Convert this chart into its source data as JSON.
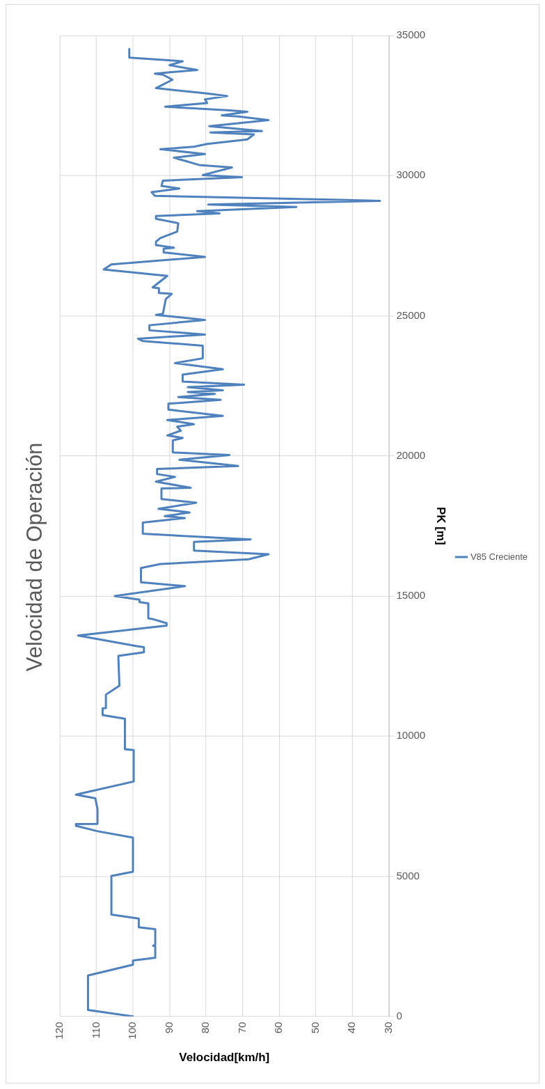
{
  "chart_data": {
    "type": "line",
    "title": "Velocidad de Operación",
    "xlabel": "Velocidad[km/h]",
    "ylabel": "PK [m]",
    "x": [
      100,
      112.3,
      112.3,
      100,
      100,
      93.9,
      93.9,
      94.5,
      93.9,
      93.9,
      98.4,
      98.4,
      105.9,
      105.9,
      100,
      100,
      109.8,
      115.6,
      115.6,
      109.7,
      109.7,
      110.3,
      115.6,
      99.8,
      99.8,
      102.2,
      102.2,
      108.3,
      108.3,
      107.4,
      107.4,
      103.7,
      104,
      97,
      97,
      98.9,
      115,
      90.8,
      90.8,
      94.4,
      95.8,
      95.8,
      98.2,
      98.2,
      105,
      85.8,
      97.8,
      97.8,
      92.5,
      68.4,
      62.9,
      83.3,
      83.3,
      67.8,
      97.3,
      97.3,
      85.8,
      91.3,
      84.5,
      93,
      82.7,
      92.2,
      92.2,
      84.2,
      93.7,
      88.5,
      93.4,
      93.4,
      71.2,
      87.3,
      73.6,
      89.1,
      89.1,
      86.4,
      90.6,
      86.9,
      87.9,
      83.3,
      90.6,
      75.4,
      90.3,
      90.3,
      76,
      87.6,
      77.6,
      85,
      75.4,
      85,
      69.6,
      86.4,
      86.4,
      75.4,
      88.5,
      80.9,
      80.9,
      97.4,
      98.6,
      80.3,
      95.5,
      95.5,
      80.3,
      93.7,
      91.8,
      91,
      89.4,
      92.9,
      92.9,
      94.6,
      90.6,
      108,
      105.9,
      80.3,
      91.6,
      91.6,
      88.8,
      93.7,
      93.7,
      92.5,
      87.9,
      87.6,
      93.7,
      93.7,
      76.3,
      82.4,
      55.3,
      79.4,
      32.4,
      94,
      94.9,
      87.3,
      92.2,
      91.8,
      70.2,
      80.9,
      72.9,
      81.9,
      88.8,
      80.3,
      92.5,
      83.3,
      79.7,
      68.7,
      66.9,
      78.8,
      64.7,
      79.1,
      62.9,
      71.2,
      75.7,
      68.7,
      73.6,
      91.2,
      79.7,
      80.3,
      74.2,
      79.7,
      93.7,
      89.2,
      91.8,
      94,
      82.4,
      90,
      86.4,
      101,
      101
    ],
    "series": [
      {
        "name": "V85 Creciente",
        "color": "#4f81bd",
        "values": [
          0,
          230,
          1460,
          1845,
          1990,
          2090,
          2500,
          2520,
          2560,
          3110,
          3180,
          3490,
          3630,
          5010,
          5160,
          6380,
          6610,
          6800,
          6860,
          6870,
          7400,
          7780,
          7910,
          8380,
          9500,
          9530,
          10620,
          10750,
          10990,
          11000,
          11480,
          11800,
          12860,
          12990,
          13170,
          13210,
          13590,
          13940,
          14030,
          14170,
          14200,
          14740,
          14780,
          14870,
          15000,
          15350,
          15490,
          16000,
          16140,
          16310,
          16490,
          16620,
          16930,
          17020,
          17220,
          17620,
          17780,
          17850,
          17980,
          18110,
          18330,
          18460,
          18840,
          18860,
          19080,
          19250,
          19350,
          19530,
          19640,
          19860,
          20030,
          20120,
          20550,
          20640,
          20730,
          20900,
          21040,
          21130,
          21280,
          21430,
          21650,
          21860,
          22000,
          22100,
          22210,
          22280,
          22340,
          22450,
          22540,
          22650,
          22900,
          23090,
          23310,
          23480,
          23930,
          24100,
          24180,
          24330,
          24480,
          24660,
          24850,
          25030,
          25070,
          25600,
          25780,
          25810,
          25980,
          26010,
          26420,
          26650,
          26830,
          27100,
          27260,
          27390,
          27430,
          27520,
          27640,
          27770,
          28000,
          28300,
          28460,
          28560,
          28650,
          28730,
          28880,
          28970,
          29100,
          29280,
          29410,
          29540,
          29630,
          29820,
          29940,
          30020,
          30290,
          30380,
          30640,
          30770,
          30940,
          31030,
          31130,
          31290,
          31470,
          31540,
          31590,
          31760,
          31980,
          32110,
          32150,
          32280,
          32330,
          32460,
          32590,
          32720,
          32840,
          32930,
          33120,
          33420,
          33600,
          33640,
          33770,
          33940,
          34080,
          34210,
          34520
        ]
      }
    ],
    "xlim": [
      120,
      30
    ],
    "ylim": [
      0,
      35000
    ],
    "xticks": [
      120,
      110,
      100,
      90,
      80,
      70,
      60,
      50,
      40,
      30
    ],
    "yticks": [
      0,
      5000,
      10000,
      15000,
      20000,
      25000,
      30000,
      35000
    ],
    "grid": true,
    "legend": "right",
    "marker": "none",
    "line_style": "solid"
  }
}
